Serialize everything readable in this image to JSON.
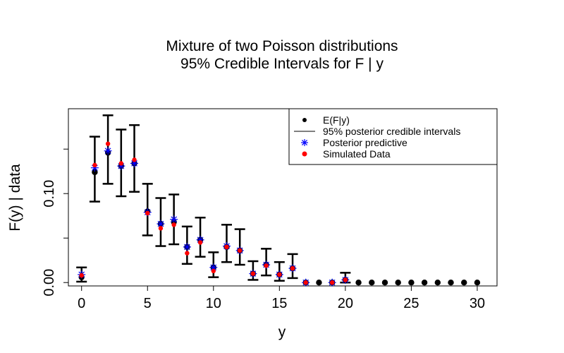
{
  "chart_data": {
    "type": "scatter",
    "title": "Mixture of two Poisson distributions",
    "subtitle": "95% Credible Intervals for  F | y",
    "xlabel": "y",
    "ylabel": "F(y) | data",
    "xlim": [
      -1,
      31.5
    ],
    "ylim": [
      -0.0038,
      0.1954
    ],
    "xticks": [
      0,
      5,
      10,
      15,
      20,
      25,
      30
    ],
    "xtick_labels": [
      "0",
      "5",
      "10",
      "15",
      "20",
      "25",
      "30"
    ],
    "yticks": [
      0.0,
      0.05,
      0.1,
      0.15
    ],
    "ytick_labels": [
      "0.00",
      "",
      "0.10",
      ""
    ],
    "grid": false,
    "legend_position": "top-right",
    "legend": {
      "mean_label": "E(F|y)",
      "interval_label": "95% posterior credible intervals",
      "predictive_label": "Posterior predictive",
      "simulated_label": "Simulated Data"
    },
    "colors": {
      "mean": "#000000",
      "interval": "#000000",
      "predictive": "#0000ff",
      "simulated": "#ff0000"
    },
    "x": [
      0,
      1,
      2,
      3,
      4,
      5,
      6,
      7,
      8,
      9,
      10,
      11,
      12,
      13,
      14,
      15,
      16,
      17,
      18,
      19,
      20,
      21,
      22,
      23,
      24,
      25,
      26,
      27,
      28,
      29,
      30
    ],
    "mean": [
      0.006,
      0.124,
      0.146,
      0.131,
      0.134,
      0.08,
      0.066,
      0.068,
      0.04,
      0.048,
      0.017,
      0.04,
      0.036,
      0.01,
      0.02,
      0.009,
      0.016,
      0.0,
      0.0,
      0.0,
      0.003,
      0.0,
      0.0,
      0.0,
      0.0,
      0.0,
      0.0,
      0.0,
      0.0,
      0.0,
      0.0
    ],
    "lower": [
      0.001,
      0.091,
      0.111,
      0.097,
      0.102,
      0.053,
      0.041,
      0.043,
      0.021,
      0.029,
      0.006,
      0.023,
      0.02,
      0.003,
      0.008,
      0.002,
      0.005,
      null,
      null,
      null,
      0.0,
      null,
      null,
      null,
      null,
      null,
      null,
      null,
      null,
      null,
      null
    ],
    "upper": [
      0.017,
      0.164,
      0.188,
      0.172,
      0.177,
      0.111,
      0.095,
      0.099,
      0.063,
      0.073,
      0.034,
      0.065,
      0.06,
      0.024,
      0.038,
      0.023,
      0.032,
      null,
      null,
      null,
      0.011,
      null,
      null,
      null,
      null,
      null,
      null,
      null,
      null,
      null,
      null
    ],
    "predictive_x": [
      0,
      1,
      2,
      3,
      4,
      5,
      6,
      7,
      8,
      9,
      10,
      11,
      12,
      13,
      14,
      15,
      16,
      17,
      19,
      20
    ],
    "predictive": [
      0.009,
      0.129,
      0.148,
      0.131,
      0.134,
      0.079,
      0.066,
      0.071,
      0.04,
      0.048,
      0.017,
      0.041,
      0.036,
      0.01,
      0.02,
      0.009,
      0.016,
      0.0,
      0.0,
      0.003
    ],
    "simulated_x": [
      0,
      1,
      2,
      3,
      4,
      5,
      6,
      7,
      8,
      9,
      10,
      11,
      12,
      13,
      14,
      15,
      16,
      17,
      19,
      20
    ],
    "simulated": [
      0.008,
      0.132,
      0.156,
      0.134,
      0.138,
      0.078,
      0.061,
      0.065,
      0.033,
      0.045,
      0.013,
      0.04,
      0.036,
      0.01,
      0.019,
      0.009,
      0.016,
      0.0,
      0.0,
      0.003
    ]
  }
}
